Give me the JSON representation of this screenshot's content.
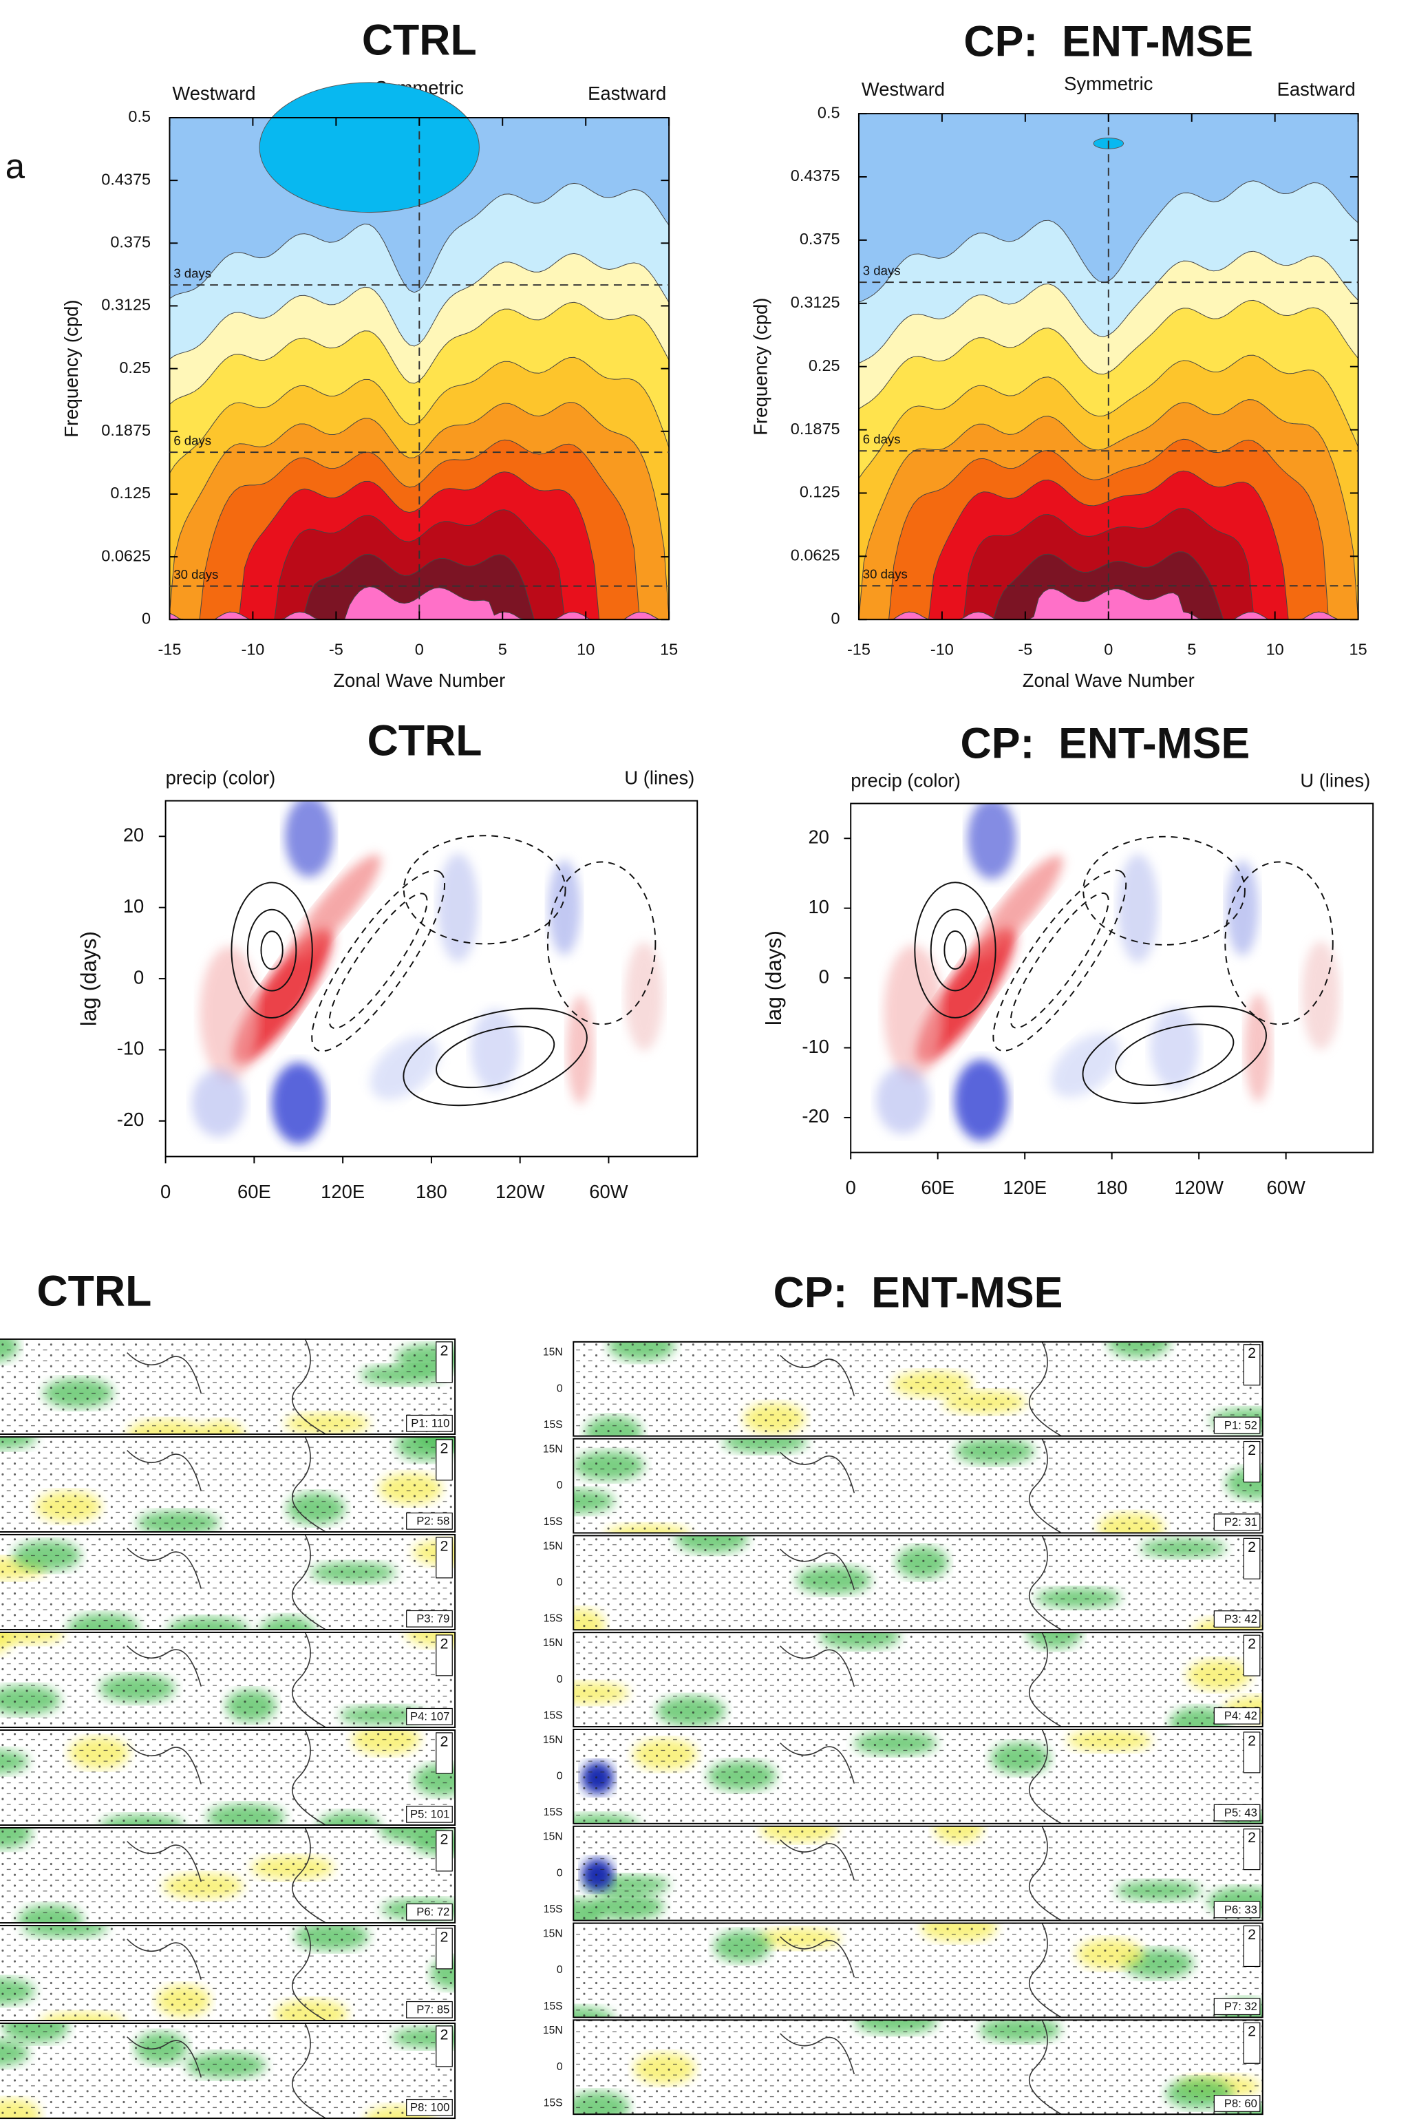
{
  "panel_letter": "a",
  "spectra": [
    {
      "title": "CTRL",
      "left_label": "Westward",
      "center_label": "Symmetric",
      "right_label": "Eastward",
      "ylabel": "Frequency (cpd)",
      "xlabel": "Zonal Wave Number",
      "period_labels": [
        "3 days",
        "6 days",
        "30 days"
      ],
      "yticks": [
        "0",
        "0.0625",
        "0.125",
        "0.1875",
        "0.25",
        "0.3125",
        "0.375",
        "0.4375",
        "0.5"
      ],
      "xticks": [
        "-15",
        "-10",
        "-5",
        "0",
        "5",
        "10",
        "15"
      ]
    },
    {
      "title": "CP:  ENT-MSE",
      "left_label": "Westward",
      "center_label": "Symmetric",
      "right_label": "Eastward",
      "ylabel": "Frequency (cpd)",
      "xlabel": "Zonal Wave Number",
      "period_labels": [
        "3 days",
        "6 days",
        "30 days"
      ],
      "yticks": [
        "0",
        "0.0625",
        "0.125",
        "0.1875",
        "0.25",
        "0.3125",
        "0.375",
        "0.4375",
        "0.5"
      ],
      "xticks": [
        "-15",
        "-10",
        "-5",
        "0",
        "5",
        "10",
        "15"
      ]
    }
  ],
  "lag": [
    {
      "title": "CTRL",
      "left_label": "precip (color)",
      "right_label": "U (lines)",
      "ylabel": "lag (days)",
      "yticks": [
        "20",
        "10",
        "0",
        "-10",
        "-20"
      ],
      "xticks": [
        "0",
        "60E",
        "120E",
        "180",
        "120W",
        "60W"
      ]
    },
    {
      "title": "CP:  ENT-MSE",
      "left_label": "precip (color)",
      "right_label": "U (lines)",
      "ylabel": "lag (days)",
      "yticks": [
        "20",
        "10",
        "0",
        "-10",
        "-20"
      ],
      "xticks": [
        "0",
        "60E",
        "120E",
        "180",
        "120W",
        "60W"
      ]
    }
  ],
  "maps": [
    {
      "title": "CTRL",
      "vector_label": "2",
      "panels": [
        "P1: 110",
        "P2: 58",
        "P3: 79",
        "P4: 107",
        "P5: 101",
        "P6: 72",
        "P7: 85",
        "P8: 100"
      ]
    },
    {
      "title": "CP:  ENT-MSE",
      "vector_label": "2",
      "lat_labels": [
        "15N",
        "0",
        "15S"
      ],
      "panels": [
        "P1: 52",
        "P2: 31",
        "P3: 42",
        "P4: 42",
        "P5: 43",
        "P6: 33",
        "P7: 32",
        "P8: 60"
      ]
    }
  ]
}
